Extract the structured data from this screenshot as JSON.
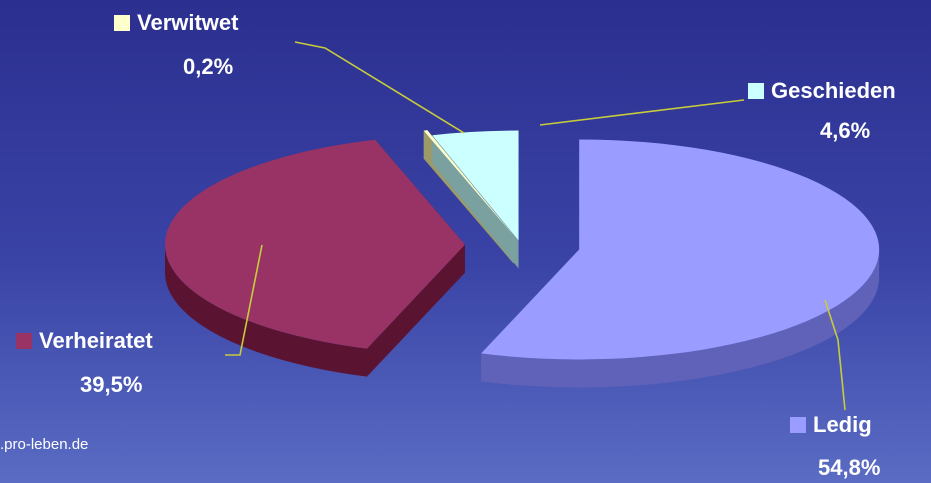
{
  "credit": ".pro-leben.de",
  "chart_data": {
    "type": "pie",
    "title": "",
    "slices": [
      {
        "label": "Ledig",
        "value": 54.8,
        "value_text": "54,8%",
        "color": "#9a9cff",
        "side_color": "#5f62b8"
      },
      {
        "label": "Verheiratet",
        "value": 39.5,
        "value_text": "39,5%",
        "color": "#993366",
        "side_color": "#5a1432"
      },
      {
        "label": "Verwitwet",
        "value": 0.2,
        "value_text": "0,2%",
        "color": "#ffffcc",
        "side_color": "#9a9a6a"
      },
      {
        "label": "Geschieden",
        "value": 4.6,
        "value_text": "4,6%",
        "color": "#ccffff",
        "side_color": "#7aa0a0"
      }
    ],
    "leader_line_color": "#c8cc3a",
    "background": "#2f35a0"
  }
}
